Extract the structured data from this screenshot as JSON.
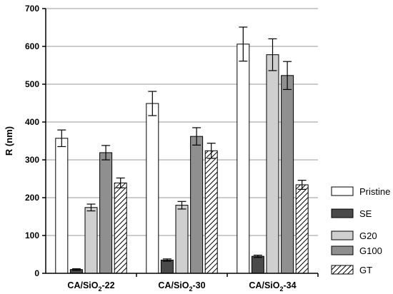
{
  "chart_data": {
    "type": "bar",
    "title": "",
    "xlabel": "",
    "ylabel": "R (nm)",
    "ylim": [
      0,
      700
    ],
    "yticks": [
      0,
      100,
      200,
      300,
      400,
      500,
      600,
      700
    ],
    "grid": true,
    "legend_position": "right",
    "categories": [
      {
        "base": "CA/SiO",
        "sub": "2",
        "tail": "-22"
      },
      {
        "base": "CA/SiO",
        "sub": "2",
        "tail": "-30"
      },
      {
        "base": "CA/SiO",
        "sub": "2",
        "tail": "-34"
      }
    ],
    "series": [
      {
        "name": "Pristine",
        "fill": "#ffffff",
        "hatch": false,
        "values": [
          357,
          449,
          606
        ],
        "errors": [
          22,
          32,
          45
        ]
      },
      {
        "name": "SE",
        "fill": "#4a4a4a",
        "hatch": false,
        "values": [
          10,
          35,
          45
        ],
        "errors": [
          2,
          3,
          3
        ]
      },
      {
        "name": "G20",
        "fill": "#cfcfcf",
        "hatch": false,
        "values": [
          174,
          180,
          578
        ],
        "errors": [
          9,
          10,
          42
        ]
      },
      {
        "name": "G100",
        "fill": "#8f8f8f",
        "hatch": false,
        "values": [
          319,
          362,
          523
        ],
        "errors": [
          19,
          23,
          37
        ]
      },
      {
        "name": "GT",
        "fill": "#ffffff",
        "hatch": true,
        "values": [
          239,
          324,
          234
        ],
        "errors": [
          13,
          20,
          12
        ]
      }
    ]
  }
}
